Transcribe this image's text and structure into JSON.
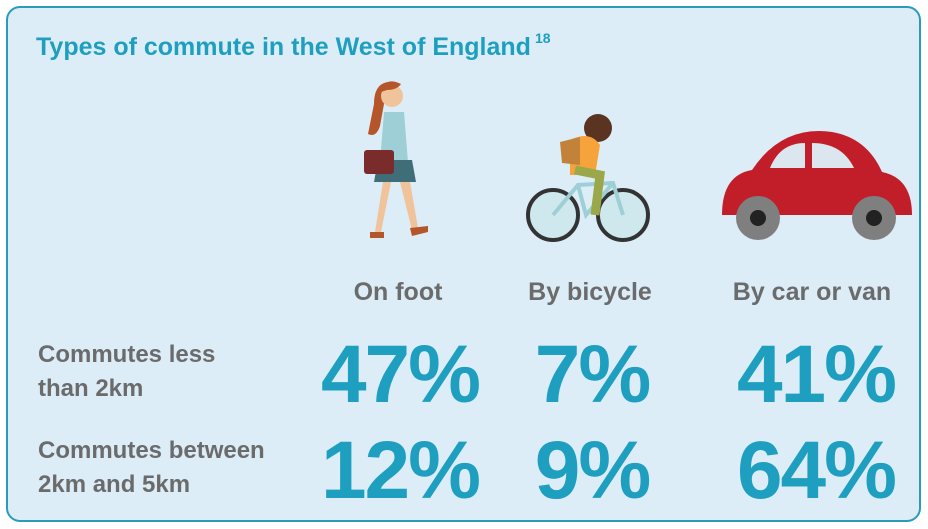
{
  "header": {
    "title": "Types of commute in the West of England",
    "footnote": "18"
  },
  "table": {
    "columns": [
      "On foot",
      "By bicycle",
      "By car or van"
    ],
    "rows": [
      {
        "label": [
          "Commutes less",
          "than 2km"
        ],
        "cells": [
          "47%",
          "7%",
          "41%"
        ]
      },
      {
        "label": [
          "Commutes between",
          "2km and 5km"
        ],
        "cells": [
          "12%",
          "9%",
          "64%"
        ]
      }
    ]
  }
}
